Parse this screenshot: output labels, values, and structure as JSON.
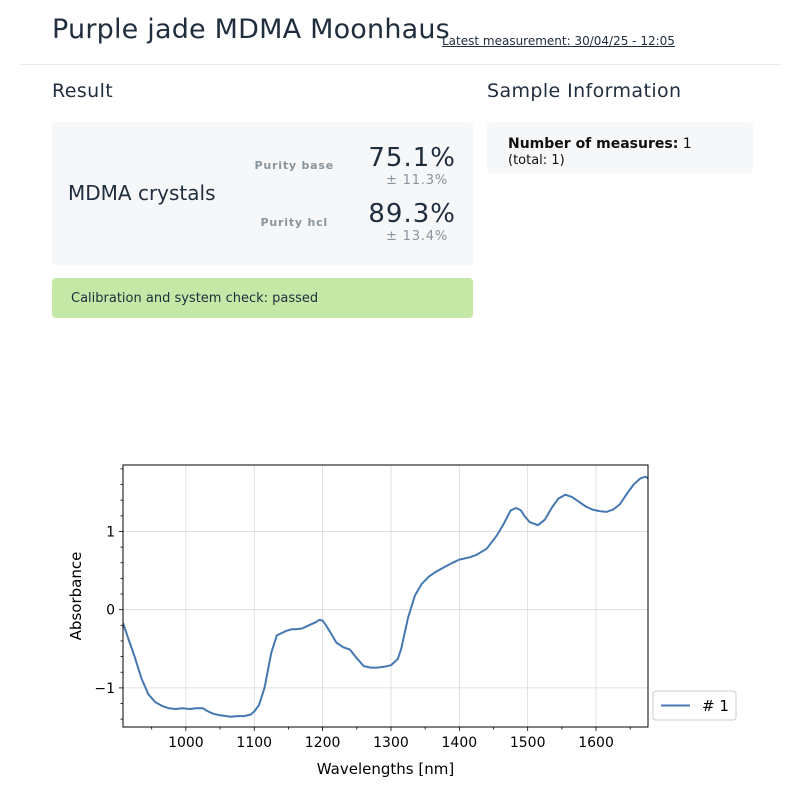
{
  "header": {
    "title": "Purple jade MDMA Moonhaus",
    "latest_measurement": "Latest measurement: 30/04/25 - 12:05"
  },
  "result": {
    "heading": "Result",
    "product": "MDMA crystals",
    "purity_base_label": "Purity base",
    "purity_base_value": "75.1%",
    "purity_base_dev": "± 11.3%",
    "purity_hcl_label": "Purity hcl",
    "purity_hcl_value": "89.3%",
    "purity_hcl_dev": "± 13.4%",
    "status": "Calibration and system check: passed",
    "status_color": "#c5e8a6"
  },
  "sample": {
    "heading": "Sample Information",
    "measures_label": "Number of measures:",
    "measures_value": "1",
    "total": "(total: 1)"
  },
  "chart_data": {
    "type": "line",
    "xlabel": "Wavelengths [nm]",
    "ylabel": "Absorbance",
    "xlim": [
      908,
      1676
    ],
    "ylim": [
      -1.5,
      1.85
    ],
    "xticks": [
      1000,
      1100,
      1200,
      1300,
      1400,
      1500,
      1600
    ],
    "yticks": [
      -1,
      0,
      1
    ],
    "ytick_labels": [
      "−1",
      "0",
      "1"
    ],
    "grid": true,
    "legend": "right",
    "series": [
      {
        "name": "# 1",
        "color": "#4678b0",
        "x": [
          908,
          915,
          925,
          935,
          945,
          955,
          965,
          975,
          985,
          995,
          1005,
          1015,
          1025,
          1030,
          1040,
          1050,
          1060,
          1065,
          1075,
          1085,
          1095,
          1100,
          1107,
          1115,
          1125,
          1133,
          1140,
          1147,
          1155,
          1160,
          1170,
          1180,
          1190,
          1195,
          1200,
          1205,
          1212,
          1220,
          1230,
          1240,
          1250,
          1260,
          1270,
          1280,
          1290,
          1300,
          1310,
          1315,
          1325,
          1335,
          1345,
          1355,
          1365,
          1375,
          1390,
          1400,
          1415,
          1425,
          1440,
          1455,
          1465,
          1475,
          1483,
          1490,
          1495,
          1503,
          1515,
          1525,
          1535,
          1545,
          1555,
          1565,
          1575,
          1585,
          1595,
          1605,
          1615,
          1625,
          1635,
          1645,
          1655,
          1665,
          1672,
          1676
        ],
        "y": [
          -0.17,
          -0.35,
          -0.6,
          -0.88,
          -1.08,
          -1.18,
          -1.23,
          -1.26,
          -1.27,
          -1.26,
          -1.27,
          -1.26,
          -1.26,
          -1.29,
          -1.33,
          -1.35,
          -1.36,
          -1.37,
          -1.36,
          -1.36,
          -1.34,
          -1.3,
          -1.22,
          -1.0,
          -0.55,
          -0.33,
          -0.3,
          -0.27,
          -0.25,
          -0.25,
          -0.24,
          -0.2,
          -0.16,
          -0.13,
          -0.14,
          -0.2,
          -0.3,
          -0.42,
          -0.48,
          -0.51,
          -0.62,
          -0.72,
          -0.74,
          -0.74,
          -0.73,
          -0.71,
          -0.63,
          -0.5,
          -0.1,
          0.18,
          0.33,
          0.42,
          0.48,
          0.53,
          0.6,
          0.64,
          0.67,
          0.7,
          0.78,
          0.95,
          1.1,
          1.27,
          1.3,
          1.27,
          1.2,
          1.12,
          1.08,
          1.15,
          1.3,
          1.42,
          1.47,
          1.44,
          1.38,
          1.32,
          1.28,
          1.26,
          1.25,
          1.28,
          1.35,
          1.48,
          1.6,
          1.68,
          1.7,
          1.68
        ]
      }
    ]
  }
}
